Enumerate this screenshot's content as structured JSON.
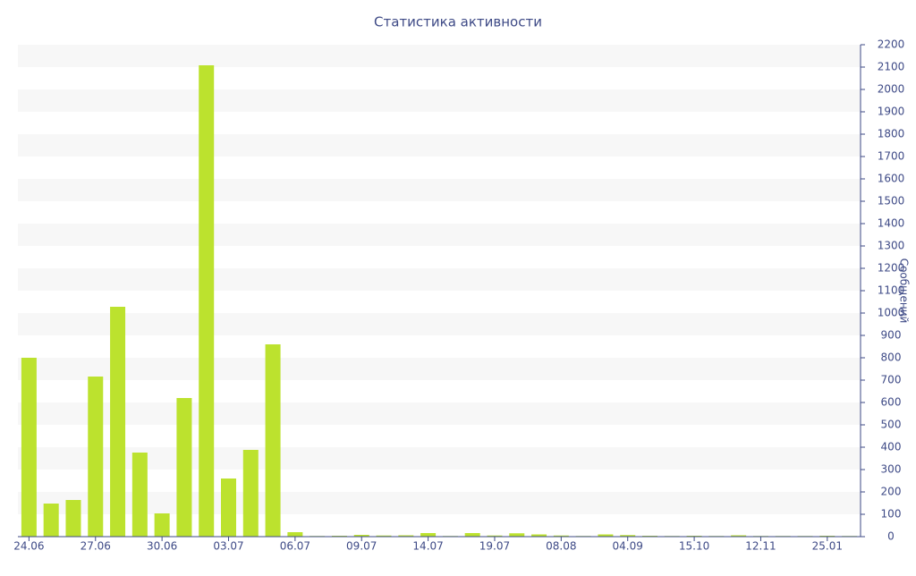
{
  "chart_data": {
    "type": "bar",
    "title": "Статистика активности",
    "y_axis_label": "Сообщений",
    "categories": [
      "24.06",
      null,
      null,
      "27.06",
      null,
      null,
      "30.06",
      null,
      null,
      "03.07",
      null,
      null,
      "06.07",
      null,
      null,
      "09.07",
      null,
      null,
      "14.07",
      null,
      null,
      "19.07",
      null,
      null,
      "08.08",
      null,
      null,
      "04.09",
      null,
      null,
      "15.10",
      null,
      null,
      "12.11",
      null,
      null,
      "25.01",
      null
    ],
    "values": [
      800,
      148,
      164,
      716,
      1028,
      376,
      104,
      620,
      2108,
      260,
      388,
      860,
      20,
      3,
      4,
      8,
      5,
      6,
      16,
      3,
      16,
      5,
      15,
      10,
      5,
      3,
      10,
      7,
      4,
      3,
      4,
      3,
      6,
      3,
      3,
      3,
      4,
      3
    ],
    "color": "#bce22e",
    "ylim": [
      0,
      2200
    ],
    "yticks": [
      0,
      100,
      200,
      300,
      400,
      500,
      600,
      700,
      800,
      900,
      1000,
      1100,
      1200,
      1300,
      1400,
      1500,
      1600,
      1700,
      1800,
      1900,
      2000,
      2100,
      2200
    ],
    "y_axis_side": "right",
    "grid": "bands"
  }
}
